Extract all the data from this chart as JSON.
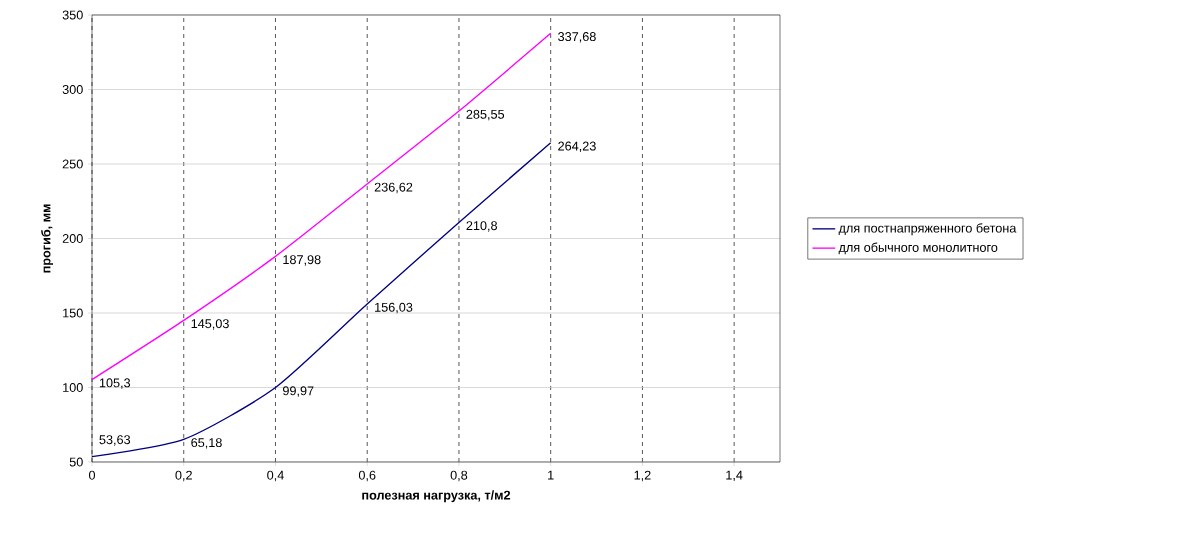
{
  "chart_data": {
    "type": "line",
    "xlabel": "полезная нагрузка, т/м2",
    "ylabel": "прогиб, мм",
    "x": [
      0,
      0.2,
      0.4,
      0.6,
      0.8,
      1
    ],
    "series": [
      {
        "name": "для постнапряженного бетона",
        "color": "#000080",
        "values": [
          53.63,
          65.18,
          99.97,
          156.03,
          210.8,
          264.23
        ],
        "value_labels": [
          "53,63",
          "65,18",
          "99,97",
          "156,03",
          "210,8",
          "264,23"
        ]
      },
      {
        "name": "для обычного монолитного",
        "color": "#ff00ff",
        "values": [
          105.3,
          145.03,
          187.98,
          236.62,
          285.55,
          337.68
        ],
        "value_labels": [
          "105,3",
          "145,03",
          "187,98",
          "236,62",
          "285,55",
          "337,68"
        ]
      }
    ],
    "xlim": [
      0,
      1.5
    ],
    "xticks": [
      0,
      {
        "value": 0.2,
        "label": "0,2"
      },
      {
        "value": 0.4,
        "label": "0,4"
      },
      {
        "value": 0.6,
        "label": "0,6"
      },
      {
        "value": 0.8,
        "label": "0,8"
      },
      1,
      {
        "value": 1.2,
        "label": "1,2"
      },
      {
        "value": 1.4,
        "label": "1,4"
      }
    ],
    "ylim": [
      50,
      350
    ],
    "yticks": [
      50,
      100,
      150,
      200,
      250,
      300,
      350
    ],
    "grid": true,
    "legend": "right",
    "marker": "none",
    "line_style": "solid"
  }
}
